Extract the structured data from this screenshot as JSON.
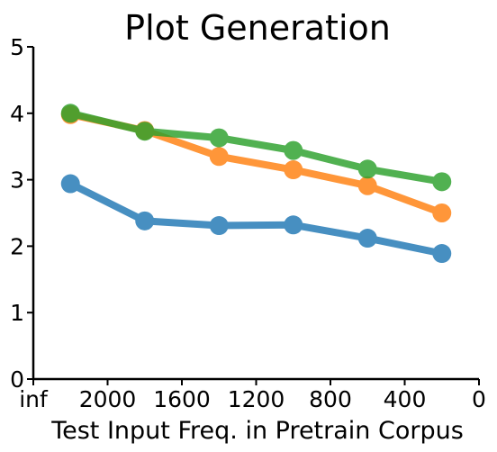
{
  "chart_data": {
    "type": "line",
    "title": "Plot Generation",
    "xlabel": "Test Input Freq. in Pretrain Corpus",
    "ylabel": "",
    "x_tick_labels": [
      "inf",
      "2000",
      "1600",
      "1200",
      "800",
      "400",
      "0"
    ],
    "x_tick_values": [
      2400,
      2000,
      1600,
      1200,
      800,
      400,
      0
    ],
    "xlim": [
      2400,
      0
    ],
    "y_ticks": [
      0,
      1,
      2,
      3,
      4,
      5
    ],
    "ylim": [
      0,
      5
    ],
    "grid": false,
    "x": [
      2200,
      1800,
      1400,
      1000,
      600,
      200
    ],
    "series": [
      {
        "color": "#1f77b4",
        "values": [
          2.94,
          2.38,
          2.31,
          2.32,
          2.12,
          1.89
        ]
      },
      {
        "color": "#ff7f0e",
        "values": [
          3.98,
          3.74,
          3.35,
          3.15,
          2.91,
          2.5
        ]
      },
      {
        "color": "#2ca02c",
        "values": [
          4.0,
          3.73,
          3.63,
          3.44,
          3.16,
          2.97
        ]
      }
    ]
  }
}
